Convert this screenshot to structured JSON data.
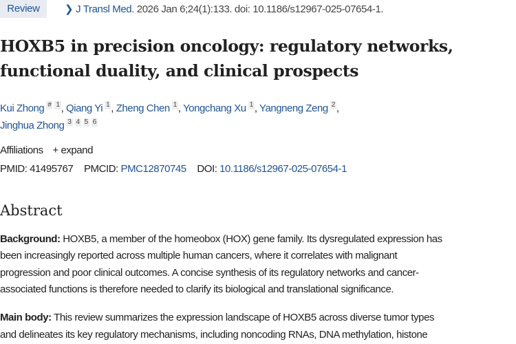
{
  "badge": "Review",
  "citation": {
    "journal": "J Transl Med.",
    "rest": " 2026 Jan 6;24(1):133. doi: 10.1186/s12967-025-07654-1."
  },
  "title_lines": [
    "HOXB5 in precision oncology: regulatory networks,",
    "functional duality, and clinical prospects"
  ],
  "authors": [
    {
      "name": "Kui Zhong",
      "sups": [
        "#",
        "1"
      ]
    },
    {
      "name": "Qiang Yi",
      "sups": [
        "1"
      ]
    },
    {
      "name": "Zheng Chen",
      "sups": [
        "1"
      ]
    },
    {
      "name": "Yongchang Xu",
      "sups": [
        "1"
      ]
    },
    {
      "name": "Yangneng Zeng",
      "sups": [
        "2"
      ]
    },
    {
      "name": "Jinghua Zhong",
      "sups": [
        "3",
        "4",
        "5",
        "6"
      ]
    }
  ],
  "affiliations": {
    "label": "Affiliations",
    "expand": "expand"
  },
  "ids": {
    "pmid_label": "PMID:",
    "pmid": "41495767",
    "pmcid_label": "PMCID:",
    "pmcid": "PMC12870745",
    "doi_label": "DOI:",
    "doi": "10.1186/s12967-025-07654-1"
  },
  "abstract": {
    "heading": "Abstract",
    "background_label": "Background:",
    "background_lines": [
      " HOXB5, a member of the homeobox (HOX) gene family. Its dysregulated expression has",
      "been increasingly reported across multiple human cancers, where it correlates with malignant",
      "progression and poor clinical outcomes. A concise synthesis of its regulatory networks and cancer-",
      "associated functions is therefore needed to clarify its biological and translational significance."
    ],
    "main_label": "Main body:",
    "main_lines": [
      " This review summarizes the expression landscape of HOXB5 across diverse tumor types",
      "and delineates its key regulatory mechanisms, including noncoding RNAs, DNA methylation, histone"
    ]
  }
}
